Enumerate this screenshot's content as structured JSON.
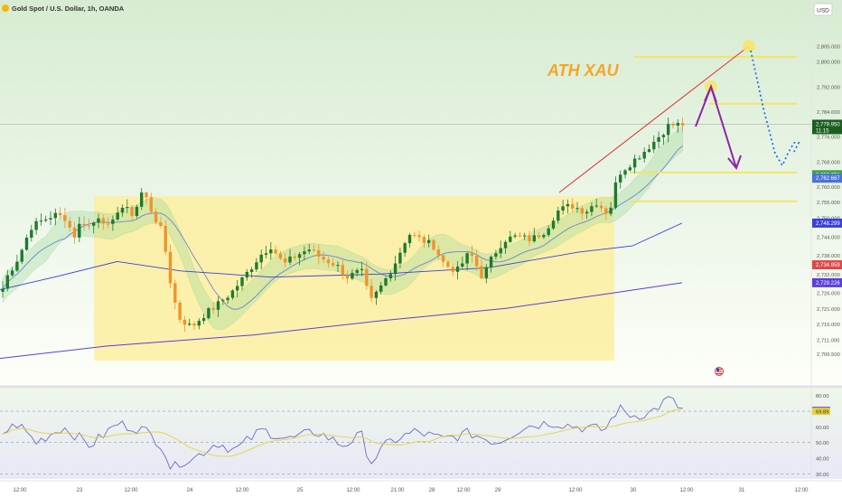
{
  "header": {
    "symbol_title": "Gold Spot / U.S. Dollar, 1h, OANDA",
    "currency_button": "USD"
  },
  "annotation": {
    "text": "ATH XAU",
    "color": "#f5a623"
  },
  "colors": {
    "up": "#1f7a2e",
    "down": "#f0932b",
    "zone": "#fbeea0",
    "sma_fast": "#4d6fd6",
    "sma_slow": "#5b3fd9",
    "trend": "#e03a3a",
    "arrow": "#8e24aa",
    "projection": "#1e73e8",
    "level": "#f3e36a",
    "rsi": "#6a6ec8",
    "rsi_ma": "#e6d33c",
    "bg_top": "#dcefd6"
  },
  "chart_data": [
    {
      "type": "candlestick",
      "title": "Gold Spot / U.S. Dollar, 1h, OANDA",
      "y_axis_side": "right",
      "ylim": [
        2702,
        2809
      ],
      "y_ticks": [
        2805,
        2800,
        2792,
        2784,
        2776,
        2768,
        2760,
        2755,
        2750,
        2744,
        2738,
        2732,
        2726,
        2721,
        2716,
        2711,
        2706.5
      ],
      "y_tick_labels": [
        "2,805.000",
        "2,800.000",
        "2,792.000",
        "2,784.000",
        "2,776.000",
        "2,768.000",
        "2,760.000",
        "2,755.000",
        "2,750.000",
        "2,744.000",
        "2,738.000",
        "2,732.000",
        "2,726.000",
        "2,721.000",
        "2,716.000",
        "2,711.000",
        "2,706.500"
      ],
      "x_ticks": [
        "12:00",
        "23",
        "12:00",
        "24",
        "12:00",
        "25",
        "12:00",
        "21:00",
        "28",
        "12:00",
        "29",
        "12:00",
        "30",
        "12:00",
        "31",
        "12:00"
      ],
      "price_labels": [
        {
          "value": 2779.95,
          "text": "2,779.950",
          "subtext": "11:15",
          "color": "#1b5e20"
        },
        {
          "value": 2763.791,
          "text": "2,763.791",
          "color": "#43a047"
        },
        {
          "value": 2762.667,
          "text": "2,762.667",
          "color": "#4a72d8"
        },
        {
          "value": 2748.299,
          "text": "2,748.299",
          "color": "#3b3fd8"
        },
        {
          "value": 2734.959,
          "text": "2,734.959",
          "color": "#e04848"
        },
        {
          "value": 2729.226,
          "text": "2,729.226",
          "color": "#5b3fd9"
        }
      ],
      "annotation": "ATH XAU"
    },
    {
      "type": "line",
      "name": "RSI",
      "ylim": [
        29,
        81
      ],
      "y_ticks": [
        80,
        70.57,
        69.89,
        60,
        50,
        40,
        30
      ],
      "y_tick_labels": [
        "80.00",
        "70.57",
        "69.89",
        "60.00",
        "50.00",
        "40.00",
        "30.00"
      ],
      "bands": [
        70,
        50,
        30
      ],
      "last_values": {
        "rsi": 70.57,
        "rsi_ma": 69.89
      }
    }
  ]
}
